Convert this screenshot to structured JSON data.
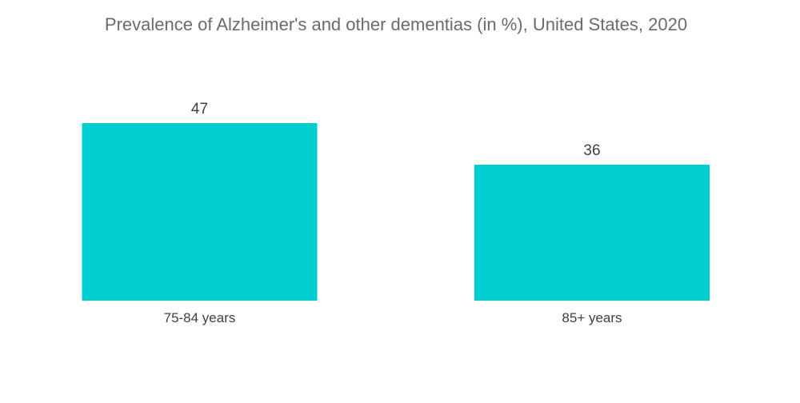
{
  "chart_data": {
    "type": "bar",
    "title": "Prevalence of Alzheimer's and other dementias (in %), United States, 2020",
    "categories": [
      "75-84 years",
      "85+ years"
    ],
    "values": [
      47,
      36
    ],
    "xlabel": "",
    "ylabel": "",
    "ylim": [
      0,
      52
    ],
    "grid": false,
    "legend": "none",
    "bar_color": "#00CED1",
    "data_labels": true
  }
}
